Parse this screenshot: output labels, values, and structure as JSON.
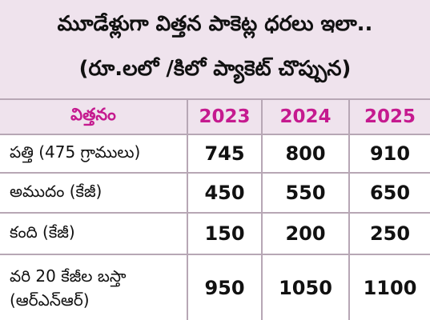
{
  "title": {
    "line1": "మూడేళ్లుగా విత్తన పాకెట్ల ధరలు ఇలా..",
    "line2": "(రూ.లలో /కిలో ప్యాకెట్ చొప్పున)"
  },
  "table": {
    "headers": [
      "విత్తనం",
      "2023",
      "2024",
      "2025"
    ],
    "rows": [
      {
        "label": [
          "పత్తి  (475 గ్రాములు)"
        ],
        "values": [
          "745",
          "800",
          "910"
        ]
      },
      {
        "label": [
          "అముదం (కేజీ)"
        ],
        "values": [
          "450",
          "550",
          "650"
        ]
      },
      {
        "label": [
          "కంది  (కేజీ)"
        ],
        "values": [
          "150",
          "200",
          "250"
        ]
      },
      {
        "label": [
          "వరి 20 కేజీల బస్తా",
          "(ఆర్ఎన్ఆర్)"
        ],
        "values": [
          "950",
          "1050",
          "1100"
        ]
      }
    ]
  },
  "colors": {
    "background": "#efe3ed",
    "header_text": "#c51a8f",
    "grid": "#b7a7b5",
    "body_text": "#111111"
  }
}
